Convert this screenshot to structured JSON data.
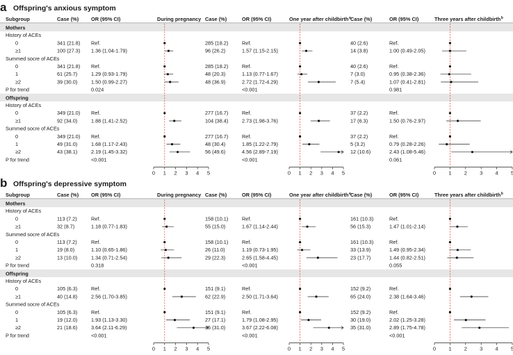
{
  "panels": [
    {
      "letter": "a",
      "title": "Offspring's anxious symptom",
      "columns": {
        "subgroup": "Subgroup",
        "case": "Case (%)",
        "or": "OR (95% CI)",
        "during": "During pregnancy",
        "one_year": "One year after childbirth",
        "three_years": "Three years after childbirth",
        "sup_one": "a",
        "sup_three": "b"
      },
      "sections": [
        {
          "label": "Mothers",
          "groups": [
            {
              "label": "History of ACEs",
              "rows": [
                {
                  "label": "0",
                  "cells": [
                    [
                      "341 (21.8)",
                      "Ref."
                    ],
                    [
                      "285 (18.2)",
                      "Ref."
                    ],
                    [
                      "40 (2.6)",
                      "Ref."
                    ]
                  ]
                },
                {
                  "label": "≥1",
                  "cells": [
                    [
                      "100 (27.3)",
                      "1.36 (1.04-1.79)"
                    ],
                    [
                      "96 (26.2)",
                      "1.57 (1.15-2.15)"
                    ],
                    [
                      "14 (3.8)",
                      "1.00 (0.49-2.05)"
                    ]
                  ]
                }
              ]
            },
            {
              "label": "Summed socre of ACEs",
              "rows": [
                {
                  "label": "0",
                  "cells": [
                    [
                      "341 (21.8)",
                      "Ref."
                    ],
                    [
                      "285 (18.2)",
                      "Ref."
                    ],
                    [
                      "40 (2.6)",
                      "Ref."
                    ]
                  ]
                },
                {
                  "label": "1",
                  "cells": [
                    [
                      "61 (25.7)",
                      "1.29 (0.93-1.79)"
                    ],
                    [
                      "48 (20.3)",
                      "1.13 (0.77-1.67)"
                    ],
                    [
                      "7 (3.0)",
                      "0.95 (0.38-2.36)"
                    ]
                  ]
                },
                {
                  "label": "≥2",
                  "cells": [
                    [
                      "39 (30.0)",
                      "1.50 (0.99-2.27)"
                    ],
                    [
                      "48 (36.9)",
                      "2.72 (1.72-4.29)"
                    ],
                    [
                      "7 (5.4)",
                      "1.07 (0.41-2.81)"
                    ]
                  ]
                }
              ]
            }
          ],
          "trend": {
            "label": "P for trend",
            "values": [
              "0.024",
              "<0.001",
              "0.981"
            ]
          }
        },
        {
          "label": "Offspring",
          "groups": [
            {
              "label": "History of ACEs",
              "rows": [
                {
                  "label": "0",
                  "cells": [
                    [
                      "349 (21.0)",
                      "Ref."
                    ],
                    [
                      "277 (16.7)",
                      "Ref."
                    ],
                    [
                      "37 (2.2)",
                      "Ref."
                    ]
                  ]
                },
                {
                  "label": "≥1",
                  "cells": [
                    [
                      "92 (34.0)",
                      "1.88 (1.41-2.52)"
                    ],
                    [
                      "104 (38.4)",
                      "2.73 (1.98-3.76)"
                    ],
                    [
                      "17 (6.3)",
                      "1.50 (0.76-2.97)"
                    ]
                  ]
                }
              ]
            },
            {
              "label": "Summed socre of ACEs",
              "rows": [
                {
                  "label": "0",
                  "cells": [
                    [
                      "349 (21.0)",
                      "Ref."
                    ],
                    [
                      "277 (16.7)",
                      "Ref."
                    ],
                    [
                      "37 (2.2)",
                      "Ref."
                    ]
                  ]
                },
                {
                  "label": "1",
                  "cells": [
                    [
                      "49 (31.0)",
                      "1.68 (1.17-2.43)"
                    ],
                    [
                      "48 (30.4)",
                      "1.85 (1.22-2.79)"
                    ],
                    [
                      "5 (3.2)",
                      "0.79 (0.28-2.26)"
                    ]
                  ]
                },
                {
                  "label": "≥2",
                  "cells": [
                    [
                      "43 (38.1)",
                      "2.19 (1.45-3.32)"
                    ],
                    [
                      "56 (49.6)",
                      "4.56 (2.89-7.19)"
                    ],
                    [
                      "12 (10.6)",
                      "2.43 (1.08-5.46)"
                    ]
                  ]
                }
              ]
            }
          ],
          "trend": {
            "label": "P for trend",
            "values": [
              "<0.001",
              "<0.001",
              "0.061"
            ]
          }
        }
      ]
    },
    {
      "letter": "b",
      "title": "Offspring's depressive symptom",
      "columns": {
        "subgroup": "Subgroup",
        "case": "Case (%)",
        "or": "OR (95% CI)",
        "during": "During pregnancy",
        "one_year": "One year after childbirth",
        "three_years": "Three years after childbirth",
        "sup_one": "a",
        "sup_three": "b"
      },
      "sections": [
        {
          "label": "Mothers",
          "groups": [
            {
              "label": "History of ACEs",
              "rows": [
                {
                  "label": "0",
                  "cells": [
                    [
                      "113 (7.2)",
                      "Ref."
                    ],
                    [
                      "158 (10.1)",
                      "Ref."
                    ],
                    [
                      "161 (10.3)",
                      "Ref."
                    ]
                  ]
                },
                {
                  "label": "≥1",
                  "cells": [
                    [
                      "32 (8.7)",
                      "1.18 (0.77-1.83)"
                    ],
                    [
                      "55 (15.0)",
                      "1.67 (1.14-2.44)"
                    ],
                    [
                      "56 (15.3)",
                      "1.47 (1.01-2.14)"
                    ]
                  ]
                }
              ]
            },
            {
              "label": "Summed socre of ACEs",
              "rows": [
                {
                  "label": "0",
                  "cells": [
                    [
                      "113 (7.2)",
                      "Ref."
                    ],
                    [
                      "158 (10.1)",
                      "Ref."
                    ],
                    [
                      "161 (10.3)",
                      "Ref."
                    ]
                  ]
                },
                {
                  "label": "1",
                  "cells": [
                    [
                      "19 (8.0)",
                      "1.10 (0.65-1.86)"
                    ],
                    [
                      "26 (11.0)",
                      "1.19 (0.73-1.95)"
                    ],
                    [
                      "33 (13.9)",
                      "1.49 (0.95-2.34)"
                    ]
                  ]
                },
                {
                  "label": "≥2",
                  "cells": [
                    [
                      "13 (10.0)",
                      "1.34 (0.71-2.54)"
                    ],
                    [
                      "29 (22.3)",
                      "2.65 (1.58-4.45)"
                    ],
                    [
                      "23 (17.7)",
                      "1.44 (0.82-2.51)"
                    ]
                  ]
                }
              ]
            }
          ],
          "trend": {
            "label": "P for trend",
            "values": [
              "0.318",
              "<0.001",
              "0.055"
            ]
          }
        },
        {
          "label": "Offspring",
          "groups": [
            {
              "label": "History of ACEs",
              "rows": [
                {
                  "label": "0",
                  "cells": [
                    [
                      "105 (6.3)",
                      "Ref."
                    ],
                    [
                      "151 (9.1)",
                      "Ref."
                    ],
                    [
                      "152 (9.2)",
                      "Ref."
                    ]
                  ]
                },
                {
                  "label": "≥1",
                  "cells": [
                    [
                      "40 (14.8)",
                      "2.56 (1.70-3.85)"
                    ],
                    [
                      "62 (22.9)",
                      "2.50 (1.71-3.64)"
                    ],
                    [
                      "65 (24.0)",
                      "2.38 (1.64-3.46)"
                    ]
                  ]
                }
              ]
            },
            {
              "label": "Summed socre of ACEs",
              "rows": [
                {
                  "label": "0",
                  "cells": [
                    [
                      "105 (6.3)",
                      "Ref."
                    ],
                    [
                      "151 (9.1)",
                      "Ref."
                    ],
                    [
                      "152 (9.2)",
                      "Ref."
                    ]
                  ]
                },
                {
                  "label": "1",
                  "cells": [
                    [
                      "19 (12.0)",
                      "1.93 (1.13-3.30)"
                    ],
                    [
                      "27 (17.1)",
                      "1.79 (1.08-2.95)"
                    ],
                    [
                      "30 (19.0)",
                      "2.02 (1.25-3.28)"
                    ]
                  ]
                },
                {
                  "label": "≥2",
                  "cells": [
                    [
                      "21 (18.6)",
                      "3.64 (2.11-6.29)"
                    ],
                    [
                      "35 (31.0)",
                      "3.67 (2.22-6.08)"
                    ],
                    [
                      "35 (31.0)",
                      "2.89 (1.75-4.78)"
                    ]
                  ]
                }
              ]
            }
          ],
          "trend": {
            "label": "P for trend",
            "values": [
              "<0.001",
              "<0.001",
              "<0.001"
            ]
          }
        }
      ]
    }
  ],
  "chart_data": {
    "type": "forest",
    "xlim": [
      0,
      5
    ],
    "reference_line": 1,
    "x_ticks": [
      "0",
      "1",
      "2",
      "3",
      "4",
      "5"
    ],
    "colors": {
      "reference_line": "#e05a4f",
      "section_band": "#e6e6e6",
      "marker": "#111111"
    }
  }
}
